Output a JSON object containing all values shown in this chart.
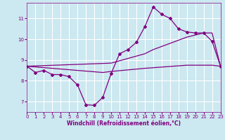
{
  "xlabel": "Windchill (Refroidissement éolien,°C)",
  "bg_color": "#cce8f0",
  "line_color": "#800080",
  "grid_color": "#ffffff",
  "xmin": 0,
  "xmax": 23,
  "ymin": 6.5,
  "ymax": 11.75,
  "yticks": [
    7,
    8,
    9,
    10,
    11
  ],
  "xticks": [
    0,
    1,
    2,
    3,
    4,
    5,
    6,
    7,
    8,
    9,
    10,
    11,
    12,
    13,
    14,
    15,
    16,
    17,
    18,
    19,
    20,
    21,
    22,
    23
  ],
  "curve1_x": [
    0,
    1,
    2,
    3,
    4,
    5,
    6,
    7,
    8,
    9,
    10,
    11,
    12,
    13,
    14,
    15,
    16,
    17,
    18,
    19,
    20,
    21,
    22,
    23
  ],
  "curve1_y": [
    8.7,
    8.4,
    8.5,
    8.3,
    8.3,
    8.2,
    7.8,
    6.85,
    6.82,
    7.2,
    8.35,
    9.3,
    9.5,
    9.85,
    10.6,
    11.55,
    11.2,
    11.0,
    10.5,
    10.35,
    10.3,
    10.3,
    9.9,
    8.7
  ],
  "curve2_x": [
    0,
    10,
    14,
    15,
    16,
    19,
    20,
    21,
    22,
    23
  ],
  "curve2_y": [
    8.7,
    8.85,
    9.3,
    9.5,
    9.65,
    10.1,
    10.2,
    10.3,
    10.3,
    8.7
  ],
  "curve3_x": [
    0,
    9,
    10,
    14,
    19,
    20,
    21,
    22,
    23
  ],
  "curve3_y": [
    8.7,
    8.4,
    8.45,
    8.6,
    8.75,
    8.75,
    8.75,
    8.75,
    8.7
  ]
}
